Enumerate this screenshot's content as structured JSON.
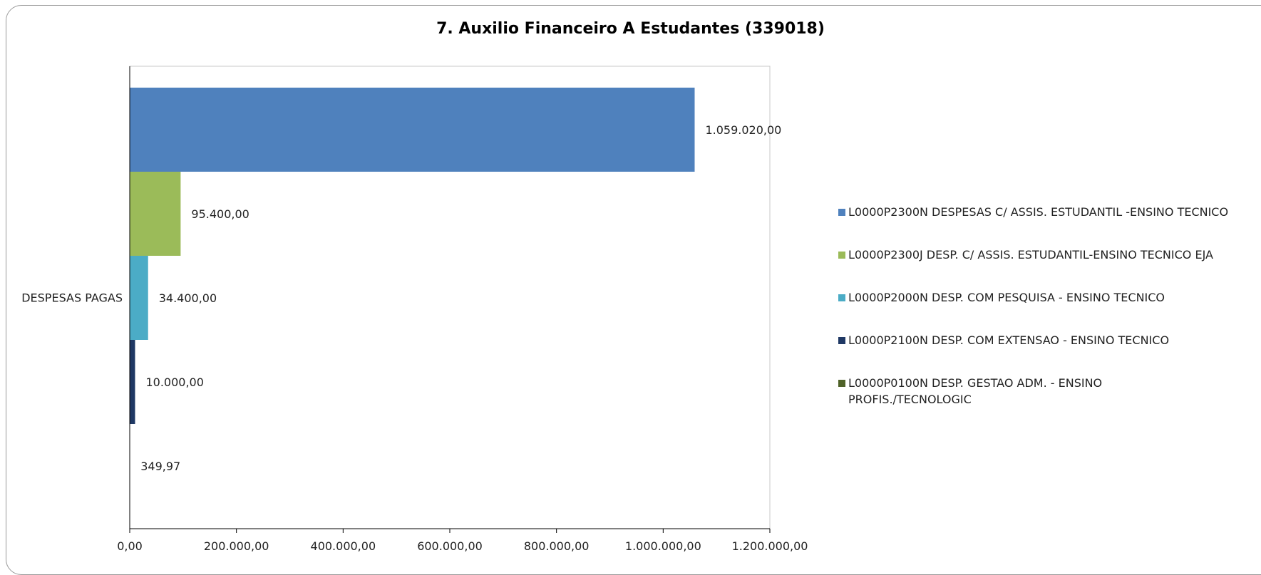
{
  "chart_data": {
    "type": "bar",
    "orientation": "horizontal",
    "title": "7. Auxilio Financeiro A Estudantes (339018)",
    "categories": [
      "DESPESAS PAGAS"
    ],
    "series": [
      {
        "name": "L0000P2300N DESPESAS C/ ASSIS. ESTUDANTIL -ENSINO TECNICO",
        "values": [
          1059020.0
        ],
        "label": "1.059.020,00",
        "color": "#4f81bd"
      },
      {
        "name": "L0000P2300J DESP. C/ ASSIS. ESTUDANTIL-ENSINO TECNICO EJA",
        "values": [
          95400.0
        ],
        "label": "95.400,00",
        "color": "#9bbb59"
      },
      {
        "name": "L0000P2000N DESP. COM PESQUISA -  ENSINO TECNICO",
        "values": [
          34400.0
        ],
        "label": "34.400,00",
        "color": "#4bacc6"
      },
      {
        "name": "L0000P2100N DESP. COM EXTENSAO - ENSINO TECNICO",
        "values": [
          10000.0
        ],
        "label": "10.000,00",
        "color": "#1f3864"
      },
      {
        "name": "L0000P0100N DESP. GESTAO ADM. - ENSINO PROFIS./TECNOLOGIC",
        "values": [
          349.97
        ],
        "label": "349,97",
        "color": "#4f6228"
      }
    ],
    "xlim": [
      0,
      1200000
    ],
    "xticks": [
      0,
      200000,
      400000,
      600000,
      800000,
      1000000,
      1200000
    ],
    "xtick_labels": [
      "0,00",
      "200.000,00",
      "400.000,00",
      "600.000,00",
      "800.000,00",
      "1.000.000,00",
      "1.200.000,00"
    ],
    "grid": false,
    "legend_position": "right"
  }
}
